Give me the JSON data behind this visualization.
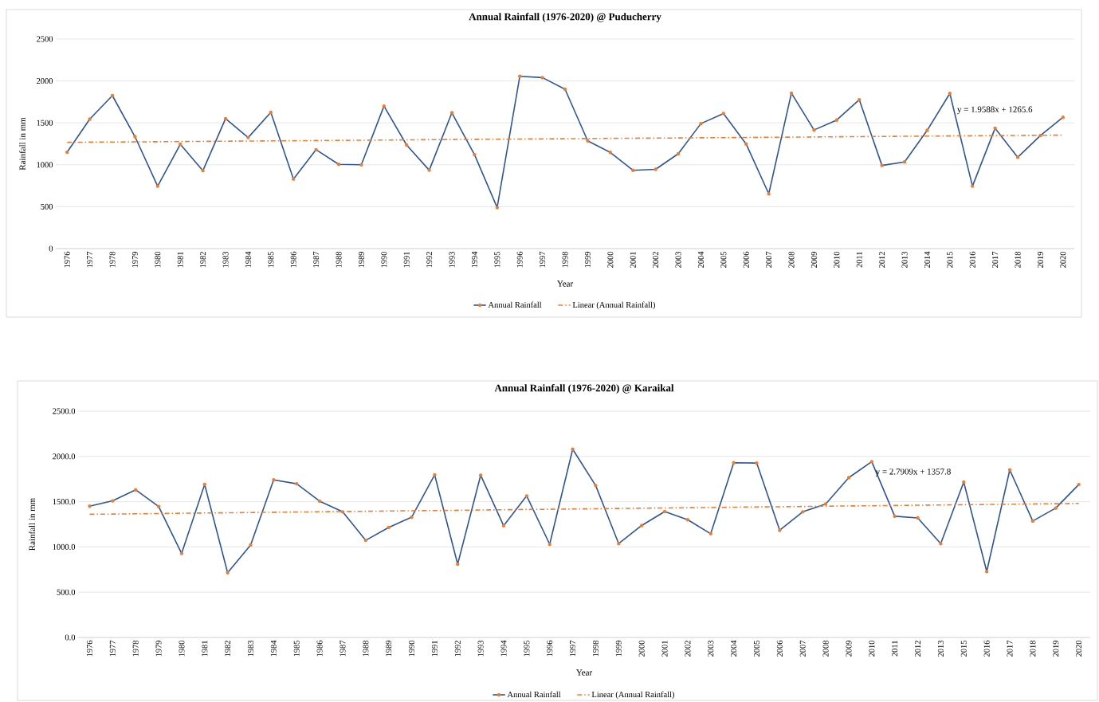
{
  "chart_data": [
    {
      "type": "line",
      "title": "Annual Rainfall (1976-2020) @ Puducherry",
      "xlabel": "Year",
      "ylabel": "Rainfall in mm",
      "categories": [
        "1976",
        "1977",
        "1978",
        "1979",
        "1980",
        "1981",
        "1982",
        "1983",
        "1984",
        "1985",
        "1986",
        "1987",
        "1988",
        "1989",
        "1990",
        "1991",
        "1992",
        "1993",
        "1994",
        "1995",
        "1996",
        "1997",
        "1998",
        "1999",
        "2000",
        "2001",
        "2002",
        "2003",
        "2004",
        "2005",
        "2006",
        "2007",
        "2008",
        "2009",
        "2010",
        "2011",
        "2012",
        "2013",
        "2014",
        "2015",
        "2016",
        "2017",
        "2018",
        "2019",
        "2020"
      ],
      "series": [
        {
          "name": "Annual Rainfall",
          "color": "#2f5597",
          "marker": "circle",
          "values": [
            1150,
            1545,
            1825,
            1335,
            745,
            1245,
            930,
            1550,
            1325,
            1625,
            830,
            1180,
            1005,
            1000,
            1700,
            1235,
            935,
            1620,
            1120,
            490,
            2055,
            2040,
            1901,
            1286,
            1147,
            934,
            946,
            1131,
            1491,
            1612,
            1248,
            653,
            1855,
            1415,
            1533,
            1776,
            992,
            1034,
            1411,
            1851,
            745,
            1436,
            1089,
            1348,
            1566
          ]
        },
        {
          "name": "Linear (Annual Rainfall)",
          "type": "line",
          "color": "#ed7d31",
          "marker": "none",
          "line_style": "dashed",
          "values": [
            1268,
            1270,
            1271,
            1273,
            1275,
            1277,
            1279,
            1281,
            1283,
            1285,
            1287,
            1289,
            1291,
            1293,
            1295,
            1297,
            1299,
            1301,
            1303,
            1305,
            1307,
            1309,
            1311,
            1313,
            1315,
            1317,
            1318,
            1320,
            1322,
            1324,
            1326,
            1328,
            1330,
            1332,
            1334,
            1336,
            1338,
            1340,
            1342,
            1344,
            1346,
            1348,
            1350,
            1352,
            1354
          ]
        }
      ],
      "ylim": [
        0,
        2500
      ],
      "yticks": [
        0,
        500,
        1000,
        1500,
        2000,
        2500
      ],
      "grid": "y",
      "legend": "bottom",
      "annotations": [
        "y = 1.9588x + 1265.6"
      ]
    },
    {
      "type": "line",
      "title": "Annual Rainfall (1976-2020) @ Karaikal",
      "xlabel": "Year",
      "ylabel": "Rainfall in mm",
      "categories": [
        "1976",
        "1977",
        "1978",
        "1979",
        "1980",
        "1981",
        "1982",
        "1983",
        "1984",
        "1985",
        "1986",
        "1987",
        "1988",
        "1989",
        "1990",
        "1991",
        "1992",
        "1993",
        "1994",
        "1995",
        "1996",
        "1997",
        "1998",
        "1999",
        "2000",
        "2001",
        "2002",
        "2003",
        "2004",
        "2005",
        "2006",
        "2007",
        "2008",
        "2009",
        "2010",
        "2011",
        "2012",
        "2013",
        "2015",
        "2016",
        "2017",
        "2018",
        "2019",
        "2020"
      ],
      "series": [
        {
          "name": "Annual Rainfall",
          "color": "#2f5597",
          "marker": "circle",
          "values": [
            1450,
            1509,
            1631,
            1447,
            928,
            1690,
            715,
            1022,
            1741,
            1698,
            1506,
            1388,
            1073,
            1215,
            1329,
            1796,
            810,
            1792,
            1234,
            1564,
            1030,
            2080,
            1678,
            1037,
            1237,
            1391,
            1301,
            1146,
            1930,
            1927,
            1184,
            1388,
            1474,
            1765,
            1942,
            1339,
            1320,
            1037,
            1716,
            728,
            1851,
            1286,
            1429,
            1689
          ]
        },
        {
          "name": "Linear (Annual Rainfall)",
          "type": "line",
          "color": "#ed7d31",
          "marker": "none",
          "line_style": "dashed",
          "values": [
            1361,
            1363,
            1366,
            1369,
            1372,
            1375,
            1377,
            1380,
            1383,
            1386,
            1388,
            1391,
            1394,
            1397,
            1400,
            1402,
            1405,
            1408,
            1411,
            1414,
            1416,
            1419,
            1422,
            1425,
            1428,
            1430,
            1433,
            1436,
            1439,
            1442,
            1444,
            1447,
            1450,
            1453,
            1455,
            1458,
            1461,
            1464,
            1467,
            1469,
            1472,
            1475,
            1478,
            1481
          ]
        }
      ],
      "ylim": [
        0,
        2500
      ],
      "yticks": [
        {
          "value": 0,
          "label": "0.0"
        },
        {
          "value": 500,
          "label": "500.0"
        },
        {
          "value": 1000,
          "label": "1000.0"
        },
        {
          "value": 1500,
          "label": "1500.0"
        },
        {
          "value": 2000,
          "label": "2000.0"
        },
        {
          "value": 2500,
          "label": "2500.0"
        }
      ],
      "grid": "y",
      "legend": "bottom",
      "annotations": [
        "y = 2.7909x + 1357.8"
      ]
    }
  ]
}
